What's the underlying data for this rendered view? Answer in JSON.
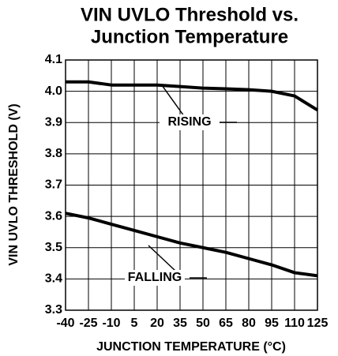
{
  "chart_data": {
    "type": "line",
    "title": [
      "VIN UVLO Threshold vs.",
      "Junction Temperature"
    ],
    "x_label": "JUNCTION TEMPERATURE (°C)",
    "y_label": "VIN UVLO THRESHOLD (V)",
    "x": [
      -40,
      -25,
      -10,
      5,
      20,
      35,
      50,
      65,
      80,
      95,
      110,
      125
    ],
    "series": [
      {
        "name": "RISING",
        "color": "#000000",
        "values": [
          4.03,
          4.03,
          4.02,
          4.02,
          4.02,
          4.015,
          4.01,
          4.008,
          4.005,
          4.0,
          3.985,
          3.94
        ]
      },
      {
        "name": "FALLING",
        "color": "#000000",
        "values": [
          3.61,
          3.595,
          3.575,
          3.555,
          3.535,
          3.515,
          3.5,
          3.485,
          3.465,
          3.445,
          3.42,
          3.41
        ]
      }
    ],
    "xlim": [
      -40,
      125
    ],
    "xticks": [
      -40,
      -25,
      -10,
      5,
      20,
      35,
      50,
      65,
      80,
      95,
      110,
      125
    ],
    "ylim": [
      3.3,
      4.1
    ],
    "yticks": [
      3.3,
      3.4,
      3.5,
      3.6,
      3.7,
      3.8,
      3.9,
      {
        "value": 4,
        "label": "4.0"
      },
      4.1
    ],
    "grid": true
  }
}
